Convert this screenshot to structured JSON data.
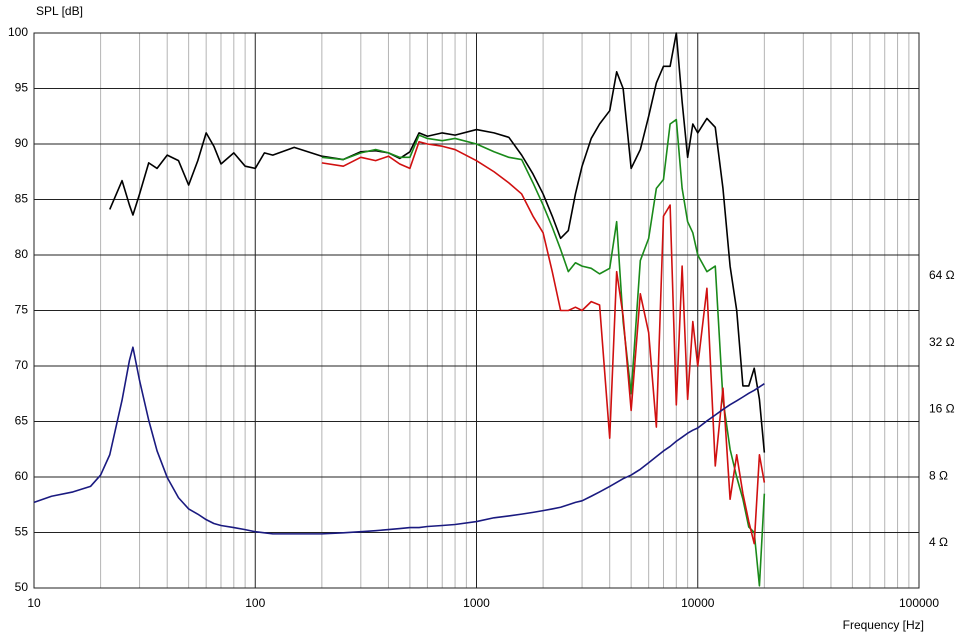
{
  "chart_data": {
    "type": "line",
    "ylabel": "SPL [dB]",
    "xlabel": "Frequency [Hz]",
    "xscale": "log",
    "y2scale": "log",
    "grid": true,
    "xlim": [
      10,
      100000
    ],
    "xticks": [
      10,
      100,
      1000,
      10000,
      100000
    ],
    "ylim": [
      50,
      100
    ],
    "yticks": [
      50,
      55,
      60,
      65,
      70,
      75,
      80,
      85,
      90,
      95,
      100
    ],
    "y2lim": [
      2.51,
      794
    ],
    "y2ticks": [
      {
        "value": 4,
        "label": "4 Ω"
      },
      {
        "value": 8,
        "label": "8 Ω"
      },
      {
        "value": 16,
        "label": "16 Ω"
      },
      {
        "value": 32,
        "label": "32 Ω"
      },
      {
        "value": 64,
        "label": "64 Ω"
      }
    ],
    "x": [
      10,
      12,
      15,
      18,
      20,
      22,
      25,
      27,
      28,
      30,
      33,
      36,
      40,
      45,
      50,
      55,
      60,
      65,
      70,
      80,
      90,
      100,
      110,
      120,
      150,
      200,
      250,
      300,
      350,
      400,
      450,
      500,
      550,
      600,
      700,
      800,
      1000,
      1200,
      1400,
      1600,
      1800,
      2000,
      2200,
      2400,
      2600,
      2800,
      3000,
      3300,
      3600,
      4000,
      4300,
      4600,
      5000,
      5500,
      6000,
      6500,
      7000,
      7500,
      8000,
      8500,
      9000,
      9500,
      10000,
      11000,
      12000,
      13000,
      14000,
      15000,
      16000,
      17000,
      18000,
      19000,
      20000
    ],
    "series": [
      {
        "color": "#000000",
        "values": [
          null,
          null,
          null,
          null,
          null,
          84.1,
          86.7,
          84.5,
          83.6,
          85.5,
          88.3,
          87.8,
          89.0,
          88.5,
          86.3,
          88.5,
          91.0,
          89.8,
          88.2,
          89.2,
          88.0,
          87.8,
          89.2,
          89.0,
          89.7,
          88.9,
          88.6,
          89.3,
          89.4,
          89.2,
          88.7,
          89.3,
          91.0,
          90.7,
          91.0,
          90.8,
          91.3,
          91.0,
          90.6,
          89.0,
          87.3,
          85.5,
          83.5,
          81.5,
          82.2,
          85.5,
          88.0,
          90.5,
          91.8,
          93.0,
          96.5,
          95.0,
          87.8,
          89.5,
          92.5,
          95.5,
          97.0,
          97.0,
          100,
          93.8,
          88.8,
          91.8,
          91.0,
          92.3,
          91.5,
          86.0,
          79.0,
          75.0,
          68.2,
          68.2,
          69.8,
          67.0,
          62.2
        ]
      },
      {
        "color": "#1a8a1a",
        "values": [
          null,
          null,
          null,
          null,
          null,
          null,
          null,
          null,
          null,
          null,
          null,
          null,
          null,
          null,
          null,
          null,
          null,
          null,
          null,
          null,
          null,
          null,
          null,
          null,
          null,
          88.8,
          88.6,
          89.2,
          89.5,
          89.2,
          88.8,
          88.8,
          90.8,
          90.5,
          90.3,
          90.5,
          90.0,
          89.3,
          88.8,
          88.6,
          86.5,
          84.5,
          82.5,
          80.5,
          78.5,
          79.3,
          79.0,
          78.8,
          78.3,
          78.8,
          83.0,
          74.0,
          67.5,
          79.5,
          81.5,
          86.0,
          86.8,
          91.8,
          92.2,
          86.0,
          83.0,
          82.0,
          80.0,
          78.5,
          79.0,
          67.0,
          62.5,
          60.0,
          58.0,
          55.5,
          55.0,
          50.2,
          58.5
        ]
      },
      {
        "color": "#d01010",
        "values": [
          null,
          null,
          null,
          null,
          null,
          null,
          null,
          null,
          null,
          null,
          null,
          null,
          null,
          null,
          null,
          null,
          null,
          null,
          null,
          null,
          null,
          null,
          null,
          null,
          null,
          88.3,
          88.0,
          88.8,
          88.5,
          88.9,
          88.2,
          87.8,
          90.2,
          90.0,
          89.8,
          89.5,
          88.5,
          87.5,
          86.5,
          85.5,
          83.5,
          82.0,
          78.5,
          75.0,
          75.0,
          75.3,
          75.0,
          75.8,
          75.5,
          63.5,
          78.5,
          74.5,
          66.0,
          76.5,
          73.0,
          64.5,
          83.5,
          84.5,
          66.5,
          79.0,
          67.0,
          74.0,
          70.0,
          77.0,
          61.0,
          68.0,
          58.0,
          62.0,
          58.5,
          56.0,
          54.0,
          62.0,
          59.5
        ]
      },
      {
        "color": "#1a1a80",
        "axis": "y2",
        "values": [
          6.1,
          6.5,
          6.8,
          7.2,
          8.1,
          10,
          17.6,
          26.6,
          30.5,
          21.6,
          14.3,
          10.4,
          7.9,
          6.4,
          5.7,
          5.4,
          5.1,
          4.9,
          4.8,
          4.7,
          4.6,
          4.5,
          4.45,
          4.4,
          4.4,
          4.4,
          4.45,
          4.5,
          4.55,
          4.6,
          4.65,
          4.7,
          4.7,
          4.75,
          4.8,
          4.85,
          5.0,
          5.2,
          5.3,
          5.4,
          5.5,
          5.6,
          5.7,
          5.8,
          5.95,
          6.1,
          6.2,
          6.5,
          6.8,
          7.2,
          7.5,
          7.8,
          8.1,
          8.6,
          9.2,
          9.8,
          10.4,
          10.9,
          11.5,
          12.0,
          12.5,
          12.9,
          13.2,
          14.2,
          15.1,
          16.0,
          16.8,
          17.5,
          18.2,
          18.9,
          19.5,
          20.2,
          20.9
        ]
      }
    ]
  }
}
